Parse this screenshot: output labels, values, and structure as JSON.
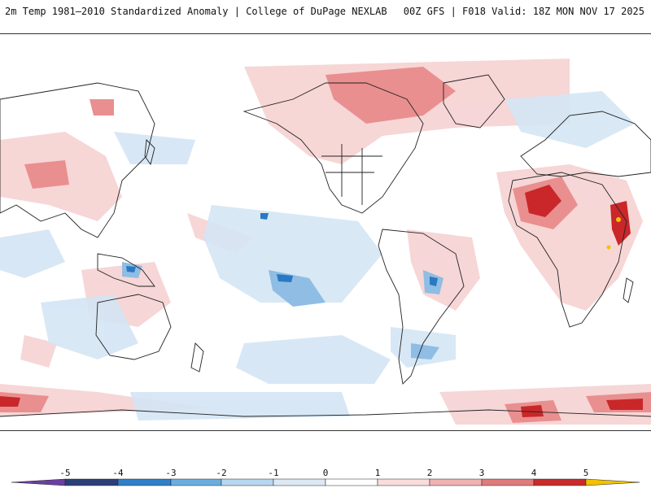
{
  "header": {
    "title": "2m Temp 1981–2010 Standardized Anomaly | College of DuPage NEXLAB",
    "run_info": "00Z GFS | F018 Valid: 18Z MON NOV 17 2025"
  },
  "colorbar": {
    "ticks": [
      "-5",
      "-4",
      "-3",
      "-2",
      "-1",
      "0",
      "1",
      "2",
      "3",
      "4",
      "5"
    ],
    "colors": [
      "#6b3fa0",
      "#2a3f7a",
      "#2f80c8",
      "#6aaee0",
      "#b8d6ef",
      "#dce9f5",
      "#ffffff",
      "#f9dcdc",
      "#f0b2b2",
      "#e07b7b",
      "#c92a2a",
      "#8b0a0a",
      "#f2c200"
    ]
  },
  "colors": {
    "warm_light": "#f6d2d2",
    "warm_mid": "#e98f8f",
    "warm_strong": "#c9272a",
    "cold_light": "#d4e5f4",
    "cold_mid": "#8fbde4",
    "cold_strong": "#2a79c2",
    "coastline": "#222222"
  }
}
